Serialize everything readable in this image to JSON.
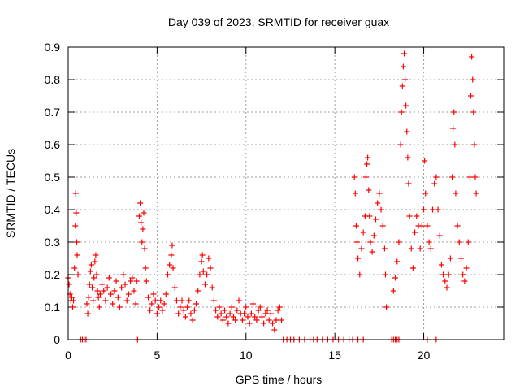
{
  "chart_data": {
    "type": "scatter",
    "title": "Day 039 of 2023, SRMTID for receiver guax",
    "xlabel": "GPS time / hours",
    "ylabel": "SRMTID / TECUs",
    "xlim": [
      0,
      24.5
    ],
    "ylim": [
      0,
      0.9
    ],
    "xticks": [
      "0",
      "5",
      "10",
      "15",
      "20"
    ],
    "yticks": [
      "0",
      "0.1",
      "0.2",
      "0.3",
      "0.4",
      "0.5",
      "0.6",
      "0.7",
      "0.8",
      "0.9"
    ],
    "grid": true,
    "marker": "plus",
    "color": "#ff0000",
    "series": [
      {
        "name": "SRMTID",
        "points": [
          [
            0.0,
            0.19
          ],
          [
            0.05,
            0.17
          ],
          [
            0.1,
            0.14
          ],
          [
            0.15,
            0.12
          ],
          [
            0.2,
            0.13
          ],
          [
            0.25,
            0.1
          ],
          [
            0.3,
            0.12
          ],
          [
            0.35,
            0.22
          ],
          [
            0.4,
            0.35
          ],
          [
            0.42,
            0.45
          ],
          [
            0.45,
            0.39
          ],
          [
            0.48,
            0.3
          ],
          [
            0.5,
            0.26
          ],
          [
            0.55,
            0.2
          ],
          [
            0.7,
            0
          ],
          [
            0.8,
            0
          ],
          [
            0.9,
            0
          ],
          [
            1.0,
            0
          ],
          [
            1.05,
            0.11
          ],
          [
            1.1,
            0.08
          ],
          [
            1.15,
            0.13
          ],
          [
            1.2,
            0.17
          ],
          [
            1.25,
            0.21
          ],
          [
            1.3,
            0.23
          ],
          [
            1.35,
            0.16
          ],
          [
            1.4,
            0.12
          ],
          [
            1.45,
            0.19
          ],
          [
            1.5,
            0.24
          ],
          [
            1.55,
            0.26
          ],
          [
            1.6,
            0.2
          ],
          [
            1.65,
            0.15
          ],
          [
            1.7,
            0.13
          ],
          [
            1.75,
            0.1
          ],
          [
            1.8,
            0.14
          ],
          [
            1.9,
            0.17
          ],
          [
            2.0,
            0.15
          ],
          [
            2.1,
            0.12
          ],
          [
            2.2,
            0.16
          ],
          [
            2.3,
            0.19
          ],
          [
            2.4,
            0.14
          ],
          [
            2.5,
            0.11
          ],
          [
            2.6,
            0.15
          ],
          [
            2.7,
            0.18
          ],
          [
            2.8,
            0.13
          ],
          [
            2.9,
            0.1
          ],
          [
            3.0,
            0.16
          ],
          [
            3.1,
            0.2
          ],
          [
            3.2,
            0.17
          ],
          [
            3.3,
            0.12
          ],
          [
            3.4,
            0.14
          ],
          [
            3.5,
            0.18
          ],
          [
            3.6,
            0.19
          ],
          [
            3.7,
            0.15
          ],
          [
            3.8,
            0.11
          ],
          [
            3.85,
            0.18
          ],
          [
            3.9,
            0
          ],
          [
            4.0,
            0.38
          ],
          [
            4.05,
            0.42
          ],
          [
            4.1,
            0.36
          ],
          [
            4.15,
            0.3
          ],
          [
            4.2,
            0.34
          ],
          [
            4.25,
            0.39
          ],
          [
            4.3,
            0.28
          ],
          [
            4.35,
            0.22
          ],
          [
            4.4,
            0.18
          ],
          [
            4.5,
            0.13
          ],
          [
            4.6,
            0.09
          ],
          [
            4.7,
            0.11
          ],
          [
            4.8,
            0.14
          ],
          [
            4.9,
            0.12
          ],
          [
            5.0,
            0.08
          ],
          [
            5.1,
            0.1
          ],
          [
            5.2,
            0.12
          ],
          [
            5.3,
            0.09
          ],
          [
            5.4,
            0.11
          ],
          [
            5.5,
            0.14
          ],
          [
            5.6,
            0.2
          ],
          [
            5.7,
            0.23
          ],
          [
            5.8,
            0.26
          ],
          [
            5.85,
            0.29
          ],
          [
            5.9,
            0.22
          ],
          [
            6.0,
            0.16
          ],
          [
            6.1,
            0.12
          ],
          [
            6.2,
            0.08
          ],
          [
            6.3,
            0.1
          ],
          [
            6.4,
            0.12
          ],
          [
            6.5,
            0.09
          ],
          [
            6.6,
            0.07
          ],
          [
            6.7,
            0.1
          ],
          [
            6.8,
            0.12
          ],
          [
            6.9,
            0.08
          ],
          [
            7.0,
            0.06
          ],
          [
            7.1,
            0.09
          ],
          [
            7.2,
            0.11
          ],
          [
            7.3,
            0.15
          ],
          [
            7.4,
            0.2
          ],
          [
            7.5,
            0.24
          ],
          [
            7.55,
            0.26
          ],
          [
            7.6,
            0.21
          ],
          [
            7.7,
            0.17
          ],
          [
            7.8,
            0.2
          ],
          [
            7.9,
            0.25
          ],
          [
            8.0,
            0.22
          ],
          [
            8.1,
            0.16
          ],
          [
            8.2,
            0.12
          ],
          [
            8.3,
            0.09
          ],
          [
            8.4,
            0.07
          ],
          [
            8.5,
            0.1
          ],
          [
            8.6,
            0.08
          ],
          [
            8.7,
            0.06
          ],
          [
            8.8,
            0.09
          ],
          [
            8.9,
            0.07
          ],
          [
            9.0,
            0.05
          ],
          [
            9.1,
            0.08
          ],
          [
            9.2,
            0.1
          ],
          [
            9.3,
            0.07
          ],
          [
            9.4,
            0.06
          ],
          [
            9.5,
            0.09
          ],
          [
            9.6,
            0.12
          ],
          [
            9.7,
            0.08
          ],
          [
            9.8,
            0.06
          ],
          [
            9.9,
            0.08
          ],
          [
            10.0,
            0.1
          ],
          [
            10.1,
            0.07
          ],
          [
            10.2,
            0.05
          ],
          [
            10.3,
            0.08
          ],
          [
            10.4,
            0.11
          ],
          [
            10.5,
            0.07
          ],
          [
            10.6,
            0.06
          ],
          [
            10.7,
            0.09
          ],
          [
            10.8,
            0.1
          ],
          [
            10.9,
            0.07
          ],
          [
            11.0,
            0.05
          ],
          [
            11.1,
            0.08
          ],
          [
            11.2,
            0.09
          ],
          [
            11.3,
            0.06
          ],
          [
            11.4,
            0.08
          ],
          [
            11.5,
            0.05
          ],
          [
            11.6,
            0.03
          ],
          [
            11.7,
            0.06
          ],
          [
            11.8,
            0.09
          ],
          [
            11.9,
            0.1
          ],
          [
            12.0,
            0.06
          ],
          [
            12.1,
            0
          ],
          [
            12.3,
            0
          ],
          [
            12.5,
            0
          ],
          [
            12.7,
            0
          ],
          [
            13.0,
            0
          ],
          [
            13.3,
            0
          ],
          [
            13.6,
            0
          ],
          [
            13.8,
            0
          ],
          [
            14.0,
            0
          ],
          [
            14.3,
            0
          ],
          [
            14.6,
            0
          ],
          [
            14.9,
            0
          ],
          [
            15.2,
            0
          ],
          [
            15.5,
            0
          ],
          [
            15.8,
            0
          ],
          [
            16.0,
            0
          ],
          [
            16.3,
            0
          ],
          [
            16.6,
            0
          ],
          [
            16.1,
            0.5
          ],
          [
            16.15,
            0.45
          ],
          [
            16.2,
            0.35
          ],
          [
            16.25,
            0.3
          ],
          [
            16.3,
            0.25
          ],
          [
            16.4,
            0.2
          ],
          [
            16.5,
            0.28
          ],
          [
            16.6,
            0.33
          ],
          [
            16.7,
            0.38
          ],
          [
            16.75,
            0.5
          ],
          [
            16.8,
            0.54
          ],
          [
            16.85,
            0.56
          ],
          [
            16.9,
            0.46
          ],
          [
            16.95,
            0.38
          ],
          [
            17.0,
            0.3
          ],
          [
            17.1,
            0.27
          ],
          [
            17.2,
            0.32
          ],
          [
            17.3,
            0.37
          ],
          [
            17.4,
            0.42
          ],
          [
            17.5,
            0.45
          ],
          [
            17.6,
            0.4
          ],
          [
            17.7,
            0.35
          ],
          [
            17.8,
            0.28
          ],
          [
            17.85,
            0.2
          ],
          [
            17.9,
            0.1
          ],
          [
            18.2,
            0
          ],
          [
            18.3,
            0
          ],
          [
            18.4,
            0
          ],
          [
            18.5,
            0
          ],
          [
            18.6,
            0
          ],
          [
            18.3,
            0.15
          ],
          [
            18.4,
            0.19
          ],
          [
            18.5,
            0.24
          ],
          [
            18.6,
            0.3
          ],
          [
            18.7,
            0.6
          ],
          [
            18.75,
            0.7
          ],
          [
            18.8,
            0.78
          ],
          [
            18.85,
            0.84
          ],
          [
            18.9,
            0.88
          ],
          [
            18.95,
            0.8
          ],
          [
            19.0,
            0.72
          ],
          [
            19.05,
            0.64
          ],
          [
            19.1,
            0.56
          ],
          [
            19.15,
            0.48
          ],
          [
            19.2,
            0.38
          ],
          [
            19.3,
            0.28
          ],
          [
            19.4,
            0.22
          ],
          [
            19.5,
            0.33
          ],
          [
            19.6,
            0.38
          ],
          [
            19.7,
            0.35
          ],
          [
            19.8,
            0.28
          ],
          [
            19.9,
            0.35
          ],
          [
            20.0,
            0.4
          ],
          [
            20.05,
            0.55
          ],
          [
            20.1,
            0.45
          ],
          [
            20.2,
            0.35
          ],
          [
            20.3,
            0.3
          ],
          [
            20.4,
            0.28
          ],
          [
            20.5,
            0.4
          ],
          [
            20.6,
            0.48
          ],
          [
            20.7,
            0.5
          ],
          [
            20.8,
            0.4
          ],
          [
            20.9,
            0.32
          ],
          [
            20.2,
            0
          ],
          [
            20.7,
            0
          ],
          [
            21.0,
            0.23
          ],
          [
            21.1,
            0.2
          ],
          [
            21.2,
            0.18
          ],
          [
            21.3,
            0.16
          ],
          [
            21.4,
            0.2
          ],
          [
            21.5,
            0.25
          ],
          [
            21.6,
            0.5
          ],
          [
            21.65,
            0.65
          ],
          [
            21.7,
            0.7
          ],
          [
            21.75,
            0.6
          ],
          [
            21.8,
            0.45
          ],
          [
            21.9,
            0.35
          ],
          [
            22.0,
            0.3
          ],
          [
            22.1,
            0.25
          ],
          [
            22.2,
            0.2
          ],
          [
            22.3,
            0.18
          ],
          [
            22.4,
            0.22
          ],
          [
            22.5,
            0.3
          ],
          [
            22.6,
            0.5
          ],
          [
            22.65,
            0.75
          ],
          [
            22.7,
            0.87
          ],
          [
            22.75,
            0.8
          ],
          [
            22.8,
            0.7
          ],
          [
            22.85,
            0.6
          ],
          [
            22.9,
            0.5
          ],
          [
            22.95,
            0.45
          ]
        ]
      }
    ]
  }
}
